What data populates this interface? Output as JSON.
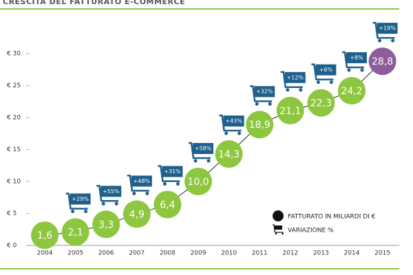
{
  "chart_data": {
    "type": "bubble-line",
    "title": "CRESCITA DEL FATTURATO E-COMMERCE",
    "categories": [
      "2004",
      "2005",
      "2006",
      "2007",
      "2008",
      "2009",
      "2010",
      "2011",
      "2012",
      "2013",
      "2014",
      "2015"
    ],
    "series": [
      {
        "name": "FATTURATO IN MILIARDI DI €",
        "color": "#8dc63f",
        "point_colors": [
          "#8dc63f",
          "#8dc63f",
          "#8dc63f",
          "#8dc63f",
          "#8dc63f",
          "#8dc63f",
          "#8dc63f",
          "#8dc63f",
          "#8dc63f",
          "#8dc63f",
          "#8dc63f",
          "#8e5c9c"
        ],
        "values": [
          1.6,
          2.1,
          3.3,
          4.9,
          6.4,
          10.0,
          14.3,
          18.9,
          21.1,
          22.3,
          24.2,
          28.8
        ],
        "value_labels": [
          "1,6",
          "2,1",
          "3,3",
          "4,9",
          "6,4",
          "10,0",
          "14,3",
          "18,9",
          "21,1",
          "22,3",
          "24,2",
          "28,8"
        ]
      },
      {
        "name": "VARIAZIONE %",
        "color": "#1f5f8b",
        "values": [
          null,
          29,
          55,
          48,
          31,
          58,
          43,
          32,
          12,
          6,
          8,
          19
        ],
        "value_labels": [
          null,
          "+29%",
          "+55%",
          "+48%",
          "+31%",
          "+58%",
          "+43%",
          "+32%",
          "+12%",
          "+6%",
          "+8%",
          "+19%"
        ]
      }
    ],
    "ylim": [
      0,
      30
    ],
    "yticks": [
      {
        "value": 0,
        "label": "€ 0"
      },
      {
        "value": 5,
        "label": "€ 5"
      },
      {
        "value": 10,
        "label": "€ 10"
      },
      {
        "value": 15,
        "label": "€ 15"
      },
      {
        "value": 20,
        "label": "€ 20"
      },
      {
        "value": 25,
        "label": "€ 25"
      },
      {
        "value": 30,
        "label": "€ 30"
      }
    ]
  }
}
